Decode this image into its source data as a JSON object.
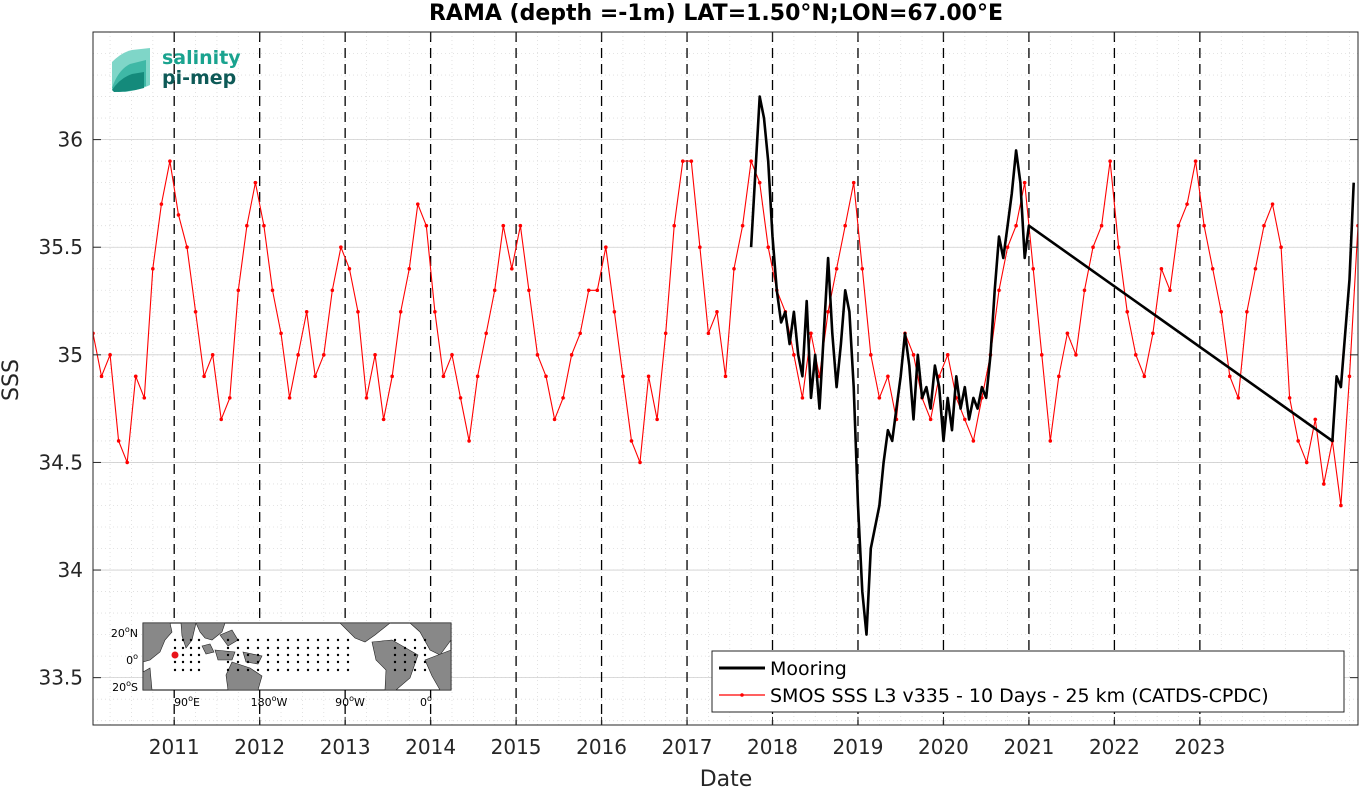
{
  "logo": {
    "line1": "salinity",
    "line2": "pi-mep",
    "color1": "#1aa38f",
    "color2": "#0e5a57"
  },
  "legend": {
    "items": [
      {
        "label": "Mooring",
        "color": "#000000"
      },
      {
        "label": "SMOS SSS L3 v335 - 10 Days - 25 km (CATDS-CPDC)",
        "color": "#ff0000"
      }
    ]
  },
  "inset_map": {
    "lat_labels": [
      "20",
      "0",
      "20"
    ],
    "lat_suffix": [
      "N",
      "",
      "S"
    ],
    "lon_labels": [
      "90",
      "180",
      "90",
      "0"
    ],
    "lon_suffix": [
      "E",
      "W",
      "W",
      ""
    ],
    "marker_color": "#e8141a"
  },
  "chart_data": {
    "type": "line",
    "title": "RAMA (depth =-1m) LAT=1.50°N;LON=67.00°E",
    "xlabel": "Date",
    "ylabel": "SSS",
    "xlim": [
      2010.05,
      2024.85
    ],
    "ylim": [
      33.28,
      36.5
    ],
    "xticks": [
      2011,
      2012,
      2013,
      2014,
      2015,
      2016,
      2017,
      2018,
      2019,
      2020,
      2021,
      2022,
      2023
    ],
    "xtick_labels": [
      "2011",
      "2012",
      "2013",
      "2014",
      "2015",
      "2016",
      "2017",
      "2018",
      "2019",
      "2020",
      "2021",
      "2022",
      "2023"
    ],
    "yticks": [
      33.5,
      34,
      34.5,
      35,
      35.5,
      36
    ],
    "ytick_labels": [
      "33.5",
      "34",
      "34.5",
      "35",
      "35.5",
      "36"
    ],
    "grid": true,
    "vertical_dashed_lines_at": [
      2011,
      2012,
      2013,
      2014,
      2015,
      2016,
      2017,
      2018,
      2019,
      2020,
      2021,
      2022,
      2023
    ],
    "legend_position": "bottom-right",
    "series": [
      {
        "name": "Mooring",
        "color": "#000000",
        "x": [
          2017.75,
          2017.8,
          2017.85,
          2017.9,
          2017.95,
          2018.0,
          2018.05,
          2018.1,
          2018.15,
          2018.2,
          2018.25,
          2018.3,
          2018.35,
          2018.4,
          2018.45,
          2018.5,
          2018.55,
          2018.6,
          2018.65,
          2018.7,
          2018.75,
          2018.8,
          2018.85,
          2018.9,
          2018.95,
          2019.0,
          2019.05,
          2019.1,
          2019.15,
          2019.2,
          2019.25,
          2019.3,
          2019.35,
          2019.4,
          2019.45,
          2019.5,
          2019.55,
          2019.6,
          2019.65,
          2019.7,
          2019.75,
          2019.8,
          2019.85,
          2019.9,
          2019.95,
          2020.0,
          2020.05,
          2020.1,
          2020.15,
          2020.2,
          2020.25,
          2020.3,
          2020.35,
          2020.4,
          2020.45,
          2020.5,
          2020.55,
          2020.6,
          2020.65,
          2020.7,
          2020.75,
          2020.8,
          2020.85,
          2020.9,
          2020.95,
          2021.0,
          2024.55,
          2024.6,
          2024.65,
          2024.7,
          2024.75,
          2024.8
        ],
        "y": [
          35.5,
          35.85,
          36.2,
          36.1,
          35.9,
          35.55,
          35.3,
          35.15,
          35.2,
          35.05,
          35.2,
          35.0,
          34.9,
          35.25,
          34.8,
          35.0,
          34.75,
          35.1,
          35.45,
          35.1,
          34.85,
          35.05,
          35.3,
          35.2,
          34.85,
          34.3,
          33.9,
          33.7,
          34.1,
          34.2,
          34.3,
          34.5,
          34.65,
          34.6,
          34.75,
          34.9,
          35.1,
          34.95,
          34.7,
          35.0,
          34.8,
          34.85,
          34.75,
          34.95,
          34.85,
          34.6,
          34.8,
          34.65,
          34.9,
          34.75,
          34.85,
          34.7,
          34.8,
          34.75,
          34.85,
          34.8,
          35.0,
          35.3,
          35.55,
          35.45,
          35.6,
          35.75,
          35.95,
          35.8,
          35.45,
          35.6,
          34.6,
          34.9,
          34.85,
          35.1,
          35.35,
          35.8
        ]
      },
      {
        "name": "SMOS SSS L3 v335 - 10 Days - 25 km (CATDS-CPDC)",
        "color": "#ff0000",
        "x": [
          2010.05,
          2010.15,
          2010.25,
          2010.35,
          2010.45,
          2010.55,
          2010.65,
          2010.75,
          2010.85,
          2010.95,
          2011.05,
          2011.15,
          2011.25,
          2011.35,
          2011.45,
          2011.55,
          2011.65,
          2011.75,
          2011.85,
          2011.95,
          2012.05,
          2012.15,
          2012.25,
          2012.35,
          2012.45,
          2012.55,
          2012.65,
          2012.75,
          2012.85,
          2012.95,
          2013.05,
          2013.15,
          2013.25,
          2013.35,
          2013.45,
          2013.55,
          2013.65,
          2013.75,
          2013.85,
          2013.95,
          2014.05,
          2014.15,
          2014.25,
          2014.35,
          2014.45,
          2014.55,
          2014.65,
          2014.75,
          2014.85,
          2014.95,
          2015.05,
          2015.15,
          2015.25,
          2015.35,
          2015.45,
          2015.55,
          2015.65,
          2015.75,
          2015.85,
          2015.95,
          2016.05,
          2016.15,
          2016.25,
          2016.35,
          2016.45,
          2016.55,
          2016.65,
          2016.75,
          2016.85,
          2016.95,
          2017.05,
          2017.15,
          2017.25,
          2017.35,
          2017.45,
          2017.55,
          2017.65,
          2017.75,
          2017.85,
          2017.95,
          2018.05,
          2018.15,
          2018.25,
          2018.35,
          2018.45,
          2018.55,
          2018.65,
          2018.75,
          2018.85,
          2018.95,
          2019.05,
          2019.15,
          2019.25,
          2019.35,
          2019.45,
          2019.55,
          2019.65,
          2019.75,
          2019.85,
          2019.95,
          2020.05,
          2020.15,
          2020.25,
          2020.35,
          2020.45,
          2020.55,
          2020.65,
          2020.75,
          2020.85,
          2020.95,
          2021.05,
          2021.15,
          2021.25,
          2021.35,
          2021.45,
          2021.55,
          2021.65,
          2021.75,
          2021.85,
          2021.95,
          2022.05,
          2022.15,
          2022.25,
          2022.35,
          2022.45,
          2022.55,
          2022.65,
          2022.75,
          2022.85,
          2022.95,
          2023.05,
          2023.15,
          2023.25,
          2023.35,
          2023.45,
          2023.55,
          2023.65,
          2023.75,
          2023.85,
          2023.95,
          2024.05,
          2024.15,
          2024.25,
          2024.35,
          2024.45,
          2024.55,
          2024.65,
          2024.75,
          2024.85
        ],
        "y": [
          35.1,
          34.9,
          35.0,
          34.6,
          34.5,
          34.9,
          34.8,
          35.4,
          35.7,
          35.9,
          35.65,
          35.5,
          35.2,
          34.9,
          35.0,
          34.7,
          34.8,
          35.3,
          35.6,
          35.8,
          35.6,
          35.3,
          35.1,
          34.8,
          35.0,
          35.2,
          34.9,
          35.0,
          35.3,
          35.5,
          35.4,
          35.2,
          34.8,
          35.0,
          34.7,
          34.9,
          35.2,
          35.4,
          35.7,
          35.6,
          35.2,
          34.9,
          35.0,
          34.8,
          34.6,
          34.9,
          35.1,
          35.3,
          35.6,
          35.4,
          35.6,
          35.3,
          35.0,
          34.9,
          34.7,
          34.8,
          35.0,
          35.1,
          35.3,
          35.3,
          35.5,
          35.2,
          34.9,
          34.6,
          34.5,
          34.9,
          34.7,
          35.1,
          35.6,
          35.9,
          35.9,
          35.5,
          35.1,
          35.2,
          34.9,
          35.4,
          35.6,
          35.9,
          35.8,
          35.5,
          35.3,
          35.2,
          35.0,
          34.8,
          35.1,
          34.9,
          35.2,
          35.4,
          35.6,
          35.8,
          35.4,
          35.0,
          34.8,
          34.9,
          34.7,
          35.1,
          35.0,
          34.8,
          34.7,
          34.9,
          35.0,
          34.8,
          34.7,
          34.6,
          34.8,
          35.0,
          35.3,
          35.5,
          35.6,
          35.8,
          35.4,
          35.0,
          34.6,
          34.9,
          35.1,
          35.0,
          35.3,
          35.5,
          35.6,
          35.9,
          35.5,
          35.2,
          35.0,
          34.9,
          35.1,
          35.4,
          35.3,
          35.6,
          35.7,
          35.9,
          35.6,
          35.4,
          35.2,
          34.9,
          34.8,
          35.2,
          35.4,
          35.6,
          35.7,
          35.5,
          34.8,
          34.6,
          34.5,
          34.7,
          34.4,
          34.6,
          34.3,
          34.9,
          35.6
        ]
      }
    ]
  }
}
